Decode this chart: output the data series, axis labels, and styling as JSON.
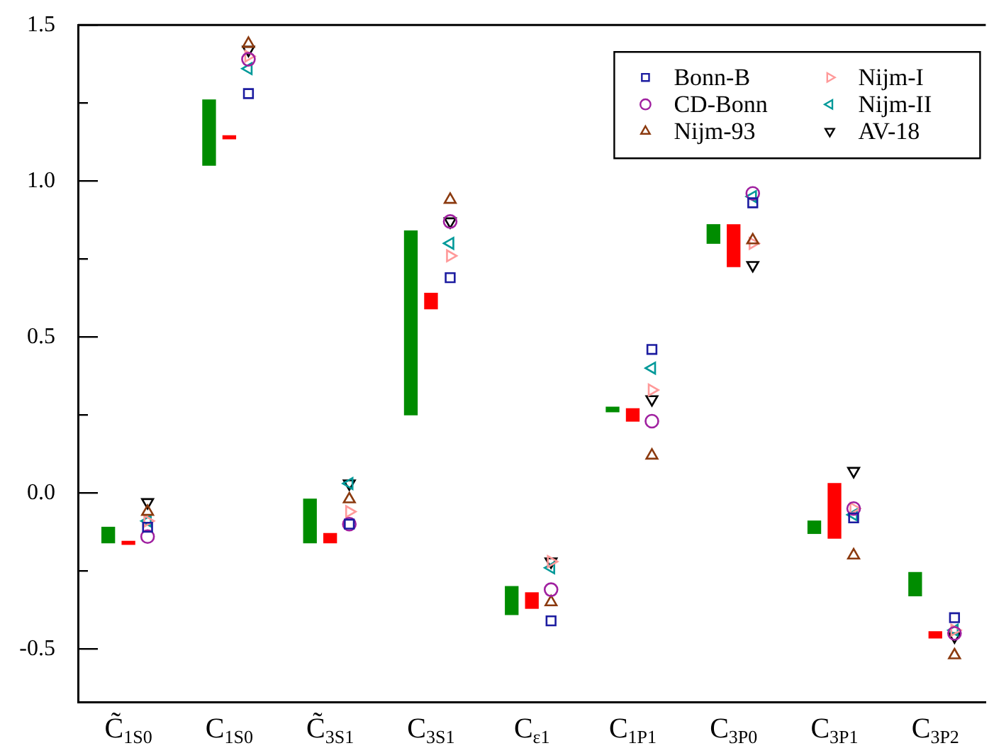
{
  "chart_data": {
    "type": "bar",
    "categories": [
      "C̃$_{1S0}$",
      "C$_{1S0}$",
      "C̃$_{3S1}$",
      "C$_{3S1}$",
      "C$_{ε1}$",
      "C$_{1P1}$",
      "C$_{3P0}$",
      "C$_{3P1}$",
      "C$_{3P2}$"
    ],
    "ylim": [
      -0.67,
      1.5
    ],
    "yticks": [
      -0.5,
      {
        "value": -0.25,
        "label": null
      },
      "0.0",
      {
        "value": 0.25,
        "label": null
      },
      0.5,
      {
        "value": 0.75,
        "label": null
      },
      "1.0",
      {
        "value": 1.25,
        "label": null
      },
      1.5
    ],
    "legend": "top right",
    "series": [
      {
        "color": "#008c00",
        "base": [
          -0.16,
          1.05,
          -0.16,
          0.25,
          -0.39,
          0.26,
          0.8,
          -0.13,
          -0.33
        ],
        "values": [
          0.05,
          0.21,
          0.14,
          0.59,
          0.09,
          0.015,
          0.06,
          0.04,
          0.075
        ]
      },
      {
        "color": "#ff0000",
        "base": [
          -0.165,
          1.135,
          -0.16,
          0.59,
          -0.37,
          0.23,
          0.725,
          -0.145,
          -0.465
        ],
        "values": [
          0.01,
          0.01,
          0.03,
          0.05,
          0.05,
          0.04,
          0.135,
          0.175,
          0.02
        ]
      },
      {
        "type": "scatter",
        "name": "Bonn-B",
        "color": "#1c1ca0",
        "marker": "square",
        "values": [
          -0.11,
          1.28,
          -0.1,
          0.69,
          -0.41,
          0.46,
          0.93,
          -0.08,
          -0.4
        ]
      },
      {
        "type": "scatter",
        "name": "CD-Bonn",
        "color": "#a020a0",
        "marker": "circle",
        "values": [
          -0.14,
          1.39,
          -0.1,
          0.87,
          -0.31,
          0.23,
          0.96,
          -0.05,
          -0.45
        ]
      },
      {
        "type": "scatter",
        "name": "Nijm-93",
        "color": "#8b3a0f",
        "marker": "triangle",
        "values": [
          -0.06,
          1.44,
          -0.02,
          0.94,
          -0.35,
          0.12,
          0.81,
          -0.2,
          -0.52
        ]
      },
      {
        "type": "scatter",
        "name": "Nijm-I",
        "color": "#ff9999",
        "marker": "triangle-right",
        "values": [
          -0.09,
          1.4,
          -0.06,
          0.76,
          -0.22,
          0.33,
          0.8,
          -0.05,
          -0.44
        ]
      },
      {
        "type": "scatter",
        "name": "Nijm-II",
        "color": "#009999",
        "marker": "triangle-left",
        "values": [
          -0.09,
          1.36,
          0.03,
          0.8,
          -0.24,
          0.4,
          0.95,
          -0.07,
          -0.44
        ]
      },
      {
        "type": "scatter",
        "name": "AV-18",
        "color": "#000000",
        "marker": "triangle-down",
        "values": [
          -0.03,
          1.42,
          0.03,
          0.87,
          -0.22,
          0.3,
          0.73,
          0.07,
          -0.46
        ]
      }
    ]
  }
}
